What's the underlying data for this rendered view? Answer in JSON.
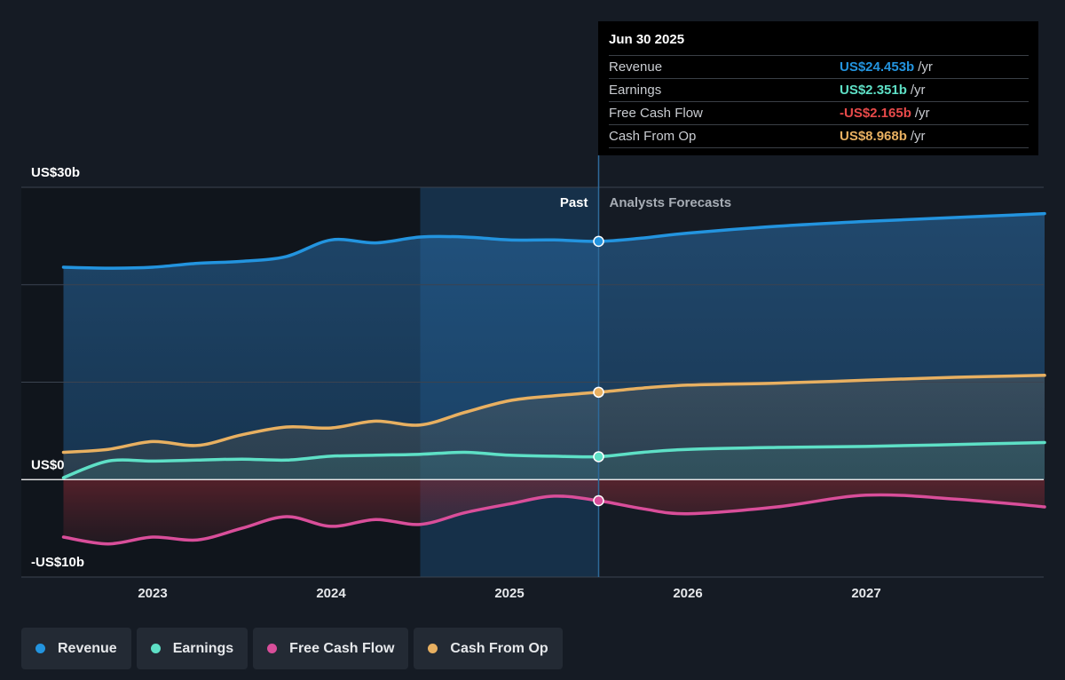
{
  "chart_data": {
    "type": "line",
    "y_ticks": [
      {
        "value": 30,
        "label": "US$30b"
      },
      {
        "value": 0,
        "label": "US$0"
      },
      {
        "value": -10,
        "label": "-US$10b"
      }
    ],
    "ylim": [
      -10,
      30
    ],
    "xlim": [
      2022.5,
      2028.0
    ],
    "x_ticks": [
      {
        "value": 2023,
        "label": "2023"
      },
      {
        "value": 2024,
        "label": "2024"
      },
      {
        "value": 2025,
        "label": "2025"
      },
      {
        "value": 2026,
        "label": "2026"
      },
      {
        "value": 2027,
        "label": "2027"
      }
    ],
    "past_label": "Past",
    "forecast_label": "Analysts Forecasts",
    "divider_x": 2025.5,
    "highlight_start_x": 2024.5,
    "series": [
      {
        "name": "Revenue",
        "color": "#2394df",
        "points": [
          [
            2022.5,
            21.8
          ],
          [
            2022.75,
            21.7
          ],
          [
            2023.0,
            21.8
          ],
          [
            2023.25,
            22.2
          ],
          [
            2023.5,
            22.4
          ],
          [
            2023.75,
            22.9
          ],
          [
            2024.0,
            24.6
          ],
          [
            2024.25,
            24.3
          ],
          [
            2024.5,
            24.9
          ],
          [
            2024.75,
            24.9
          ],
          [
            2025.0,
            24.6
          ],
          [
            2025.25,
            24.6
          ],
          [
            2025.5,
            24.453
          ],
          [
            2025.75,
            24.8
          ],
          [
            2026.0,
            25.3
          ],
          [
            2026.5,
            26.0
          ],
          [
            2027.0,
            26.5
          ],
          [
            2027.5,
            26.9
          ],
          [
            2028.0,
            27.3
          ]
        ]
      },
      {
        "name": "Earnings",
        "color": "#5ee0c6",
        "points": [
          [
            2022.5,
            0.2
          ],
          [
            2022.75,
            1.9
          ],
          [
            2023.0,
            1.9
          ],
          [
            2023.25,
            2.0
          ],
          [
            2023.5,
            2.1
          ],
          [
            2023.75,
            2.0
          ],
          [
            2024.0,
            2.4
          ],
          [
            2024.25,
            2.5
          ],
          [
            2024.5,
            2.6
          ],
          [
            2024.75,
            2.8
          ],
          [
            2025.0,
            2.5
          ],
          [
            2025.25,
            2.4
          ],
          [
            2025.5,
            2.351
          ],
          [
            2025.75,
            2.8
          ],
          [
            2026.0,
            3.1
          ],
          [
            2026.5,
            3.3
          ],
          [
            2027.0,
            3.4
          ],
          [
            2027.5,
            3.6
          ],
          [
            2028.0,
            3.8
          ]
        ]
      },
      {
        "name": "Free Cash Flow",
        "color": "#d94e9a",
        "points": [
          [
            2022.5,
            -5.9
          ],
          [
            2022.75,
            -6.6
          ],
          [
            2023.0,
            -5.9
          ],
          [
            2023.25,
            -6.2
          ],
          [
            2023.5,
            -5.0
          ],
          [
            2023.75,
            -3.8
          ],
          [
            2024.0,
            -4.8
          ],
          [
            2024.25,
            -4.1
          ],
          [
            2024.5,
            -4.6
          ],
          [
            2024.75,
            -3.4
          ],
          [
            2025.0,
            -2.5
          ],
          [
            2025.25,
            -1.7
          ],
          [
            2025.5,
            -2.165
          ],
          [
            2025.75,
            -3.0
          ],
          [
            2026.0,
            -3.5
          ],
          [
            2026.5,
            -2.8
          ],
          [
            2027.0,
            -1.6
          ],
          [
            2027.5,
            -2.0
          ],
          [
            2028.0,
            -2.8
          ]
        ]
      },
      {
        "name": "Cash From Op",
        "color": "#e8b061",
        "points": [
          [
            2022.5,
            2.8
          ],
          [
            2022.75,
            3.1
          ],
          [
            2023.0,
            3.9
          ],
          [
            2023.25,
            3.5
          ],
          [
            2023.5,
            4.6
          ],
          [
            2023.75,
            5.4
          ],
          [
            2024.0,
            5.3
          ],
          [
            2024.25,
            6.0
          ],
          [
            2024.5,
            5.6
          ],
          [
            2024.75,
            6.9
          ],
          [
            2025.0,
            8.1
          ],
          [
            2025.25,
            8.6
          ],
          [
            2025.5,
            8.968
          ],
          [
            2025.75,
            9.4
          ],
          [
            2026.0,
            9.7
          ],
          [
            2026.5,
            9.9
          ],
          [
            2027.0,
            10.2
          ],
          [
            2027.5,
            10.5
          ],
          [
            2028.0,
            10.7
          ]
        ]
      }
    ]
  },
  "tooltip": {
    "date": "Jun 30 2025",
    "unit": "/yr",
    "rows": [
      {
        "label": "Revenue",
        "value": "US$24.453b",
        "color": "#2394df"
      },
      {
        "label": "Earnings",
        "value": "US$2.351b",
        "color": "#5ee0c6"
      },
      {
        "label": "Free Cash Flow",
        "value": "-US$2.165b",
        "color": "#e84a4a"
      },
      {
        "label": "Cash From Op",
        "value": "US$8.968b",
        "color": "#e8b061"
      }
    ]
  },
  "legend": [
    {
      "label": "Revenue",
      "color": "#2394df"
    },
    {
      "label": "Earnings",
      "color": "#5ee0c6"
    },
    {
      "label": "Free Cash Flow",
      "color": "#d94e9a"
    },
    {
      "label": "Cash From Op",
      "color": "#e8b061"
    }
  ]
}
